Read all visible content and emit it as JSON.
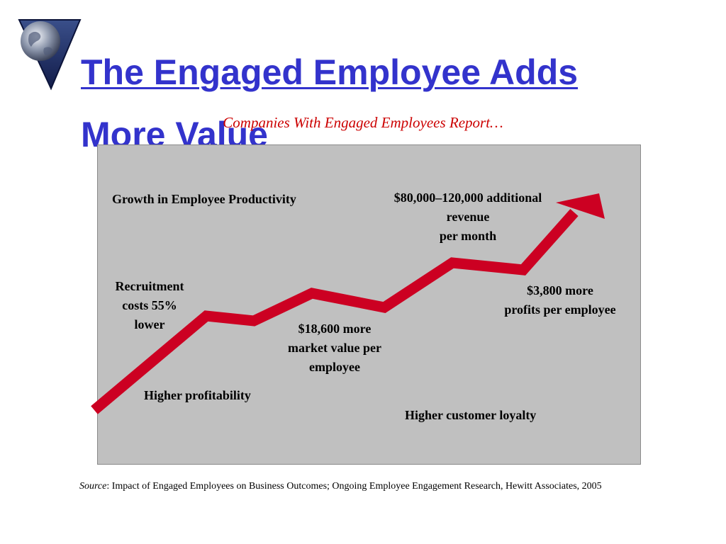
{
  "slide": {
    "title_line1": "The Engaged Employee Adds",
    "title_line2": "More Value",
    "subtitle": "Companies With Engaged Employees Report…"
  },
  "labels": {
    "growth": "Growth in Employee Productivity",
    "revenue_1": "$80,000–120,000 additional",
    "revenue_2": "revenue",
    "revenue_3": "per month",
    "recruit_1": "Recruitment",
    "recruit_2": "costs 55%",
    "recruit_3": "lower",
    "profits_1": "$3,800 more",
    "profits_2": "profits per employee",
    "market_1": "$18,600 more",
    "market_2": "market value per",
    "market_3": "employee",
    "profitability": "Higher profitability",
    "loyalty": "Higher customer loyalty"
  },
  "source": {
    "prefix": "Source",
    "text": ": Impact of Engaged Employees on Business Outcomes; Ongoing Employee Engagement Research, Hewitt Associates, 2005"
  },
  "colors": {
    "title": "#3333cc",
    "subtitle": "#cc0000",
    "arrow": "#cc0022",
    "panel": "#c0c0c0"
  },
  "icons": {
    "logo": "globe-in-triangle-icon",
    "arrow": "trend-up-arrow"
  }
}
